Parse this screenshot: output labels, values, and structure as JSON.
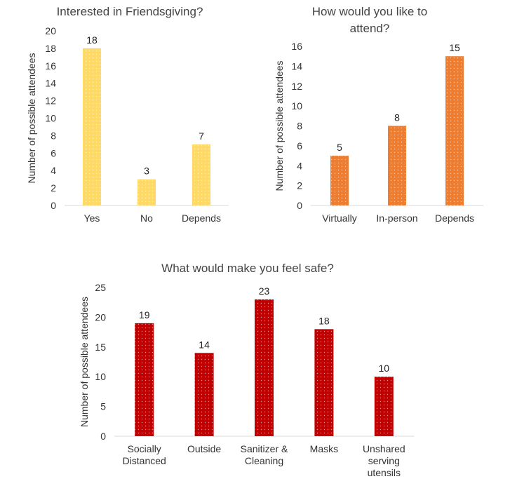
{
  "chart_data": [
    {
      "type": "bar",
      "title": "Interested in Friendsgiving?",
      "categories": [
        "Yes",
        "No",
        "Depends"
      ],
      "values": [
        18,
        3,
        7
      ],
      "ylabel": "Number of possible attendees",
      "xlabel": "",
      "ylim": [
        0,
        20
      ],
      "yticks": [
        0,
        2,
        4,
        6,
        8,
        10,
        12,
        14,
        16,
        18,
        20
      ],
      "color": "#FFD966",
      "grid": false
    },
    {
      "type": "bar",
      "title": "How would you like to attend?",
      "categories": [
        "Virtually",
        "In-person",
        "Depends"
      ],
      "values": [
        5,
        8,
        15
      ],
      "ylabel": "Number of possible attendees",
      "xlabel": "",
      "ylim": [
        0,
        16
      ],
      "yticks": [
        0,
        2,
        4,
        6,
        8,
        10,
        12,
        14,
        16
      ],
      "color": "#ED7D31",
      "grid": false
    },
    {
      "type": "bar",
      "title": "What would make you feel safe?",
      "categories": [
        "Socially Distanced",
        "Outside",
        "Sanitizer & Cleaning",
        "Masks",
        "Unshared serving utensils"
      ],
      "values": [
        19,
        14,
        23,
        18,
        10
      ],
      "ylabel": "Number of possible attendees",
      "xlabel": "",
      "ylim": [
        0,
        25
      ],
      "yticks": [
        0,
        5,
        10,
        15,
        20,
        25
      ],
      "color": "#C00000",
      "grid": false
    }
  ]
}
